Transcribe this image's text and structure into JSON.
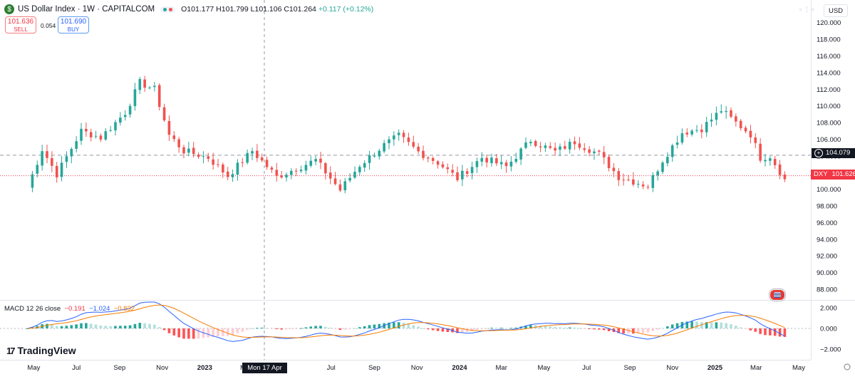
{
  "header": {
    "title": "US Dollar Index · 1W · CAPITALCOM",
    "ohlc": "O101.177 H101.799 L101.106 C101.264 ",
    "change": "+0.117 (+0.12%)"
  },
  "trade": {
    "sell_price": "101.636",
    "sell_label": "SELL",
    "spread": "0.054",
    "buy_price": "101.690",
    "buy_label": "BUY"
  },
  "currency_selector": "USD",
  "indicator": {
    "name": "MACD 12 26 close",
    "hist": "−0.191",
    "macd": "−1.024",
    "signal": "−0.832"
  },
  "brand": "TradingView",
  "crosshair_date": "Mon 17 Apr '23",
  "price_labels": {
    "line": "104.079",
    "symbol": "DXY",
    "last": "101.626"
  },
  "colors": {
    "up": "#26a69a",
    "down": "#ef5350",
    "macd_line": "#2962ff",
    "signal_line": "#f57c00",
    "last_price": "#f23645"
  },
  "chart_data": {
    "type": "candlestick",
    "y_ticks": [
      "120.000",
      "118.000",
      "116.000",
      "114.000",
      "112.000",
      "110.000",
      "108.000",
      "106.000",
      "104.000",
      "102.000",
      "100.000",
      "98.000",
      "96.000",
      "94.000",
      "92.000",
      "90.000",
      "88.000"
    ],
    "macd_ticks": [
      "2.000",
      "0.000",
      "−2.000"
    ],
    "x_ticks": [
      "May",
      "Jul",
      "Sep",
      "Nov",
      "2023",
      "Mar",
      "Jul",
      "Sep",
      "Nov",
      "2024",
      "Mar",
      "May",
      "Jul",
      "Sep",
      "Nov",
      "2025",
      "Mar",
      "May"
    ],
    "ylim": [
      86.8,
      121.0
    ],
    "anchors": [
      [
        "2022-04-22",
        100.2
      ],
      [
        "2022-05-13",
        104.8
      ],
      [
        "2022-06-03",
        101.8
      ],
      [
        "2022-07-08",
        107.0
      ],
      [
        "2022-08-05",
        106.2
      ],
      [
        "2022-09-09",
        109.2
      ],
      [
        "2022-09-30",
        112.8
      ],
      [
        "2022-10-21",
        112.0
      ],
      [
        "2022-11-11",
        106.5
      ],
      [
        "2022-12-02",
        104.6
      ],
      [
        "2023-01-06",
        103.8
      ],
      [
        "2023-02-03",
        101.6
      ],
      [
        "2023-03-10",
        104.6
      ],
      [
        "2023-04-14",
        101.5
      ],
      [
        "2023-05-12",
        102.5
      ],
      [
        "2023-06-09",
        103.5
      ],
      [
        "2023-07-14",
        99.9
      ],
      [
        "2023-08-11",
        102.9
      ],
      [
        "2023-09-15",
        105.3
      ],
      [
        "2023-10-06",
        106.4
      ],
      [
        "2023-11-03",
        104.5
      ],
      [
        "2023-12-01",
        103.2
      ],
      [
        "2023-12-29",
        101.3
      ],
      [
        "2024-02-02",
        103.8
      ],
      [
        "2024-03-08",
        102.7
      ],
      [
        "2024-04-12",
        105.9
      ],
      [
        "2024-05-17",
        104.5
      ],
      [
        "2024-06-14",
        105.7
      ],
      [
        "2024-07-19",
        104.2
      ],
      [
        "2024-08-16",
        101.5
      ],
      [
        "2024-09-27",
        100.4
      ],
      [
        "2024-10-18",
        103.5
      ],
      [
        "2024-11-15",
        106.8
      ],
      [
        "2024-12-13",
        107.3
      ],
      [
        "2025-01-10",
        109.5
      ],
      [
        "2025-01-31",
        108.0
      ],
      [
        "2025-02-21",
        106.6
      ],
      [
        "2025-03-07",
        103.8
      ],
      [
        "2025-03-21",
        104.0
      ],
      [
        "2025-04-11",
        101.2
      ]
    ]
  }
}
